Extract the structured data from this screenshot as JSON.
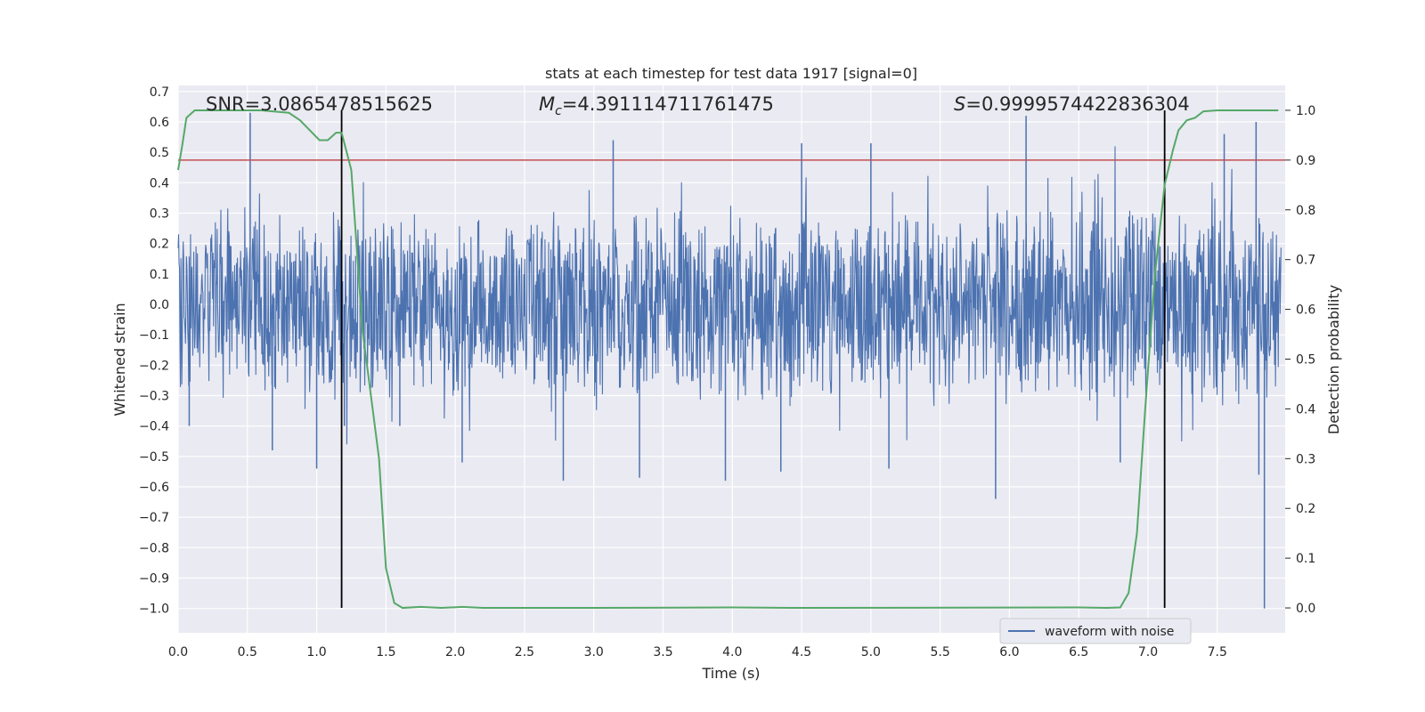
{
  "chart_data": {
    "type": "line",
    "title": "stats at each timestep for test data 1917 [signal=0]",
    "xlabel": "Time (s)",
    "ylabel": "Whitened strain",
    "y2label": "Detection probability",
    "xlim": [
      0.0,
      7.99
    ],
    "ylim": [
      -1.08,
      0.72
    ],
    "y2lim": [
      -0.05,
      1.05
    ],
    "grid": true,
    "legend": {
      "location": "lower-right",
      "entries": [
        "waveform with noise"
      ]
    },
    "x_ticks": [
      "0.0",
      "0.5",
      "1.0",
      "1.5",
      "2.0",
      "2.5",
      "3.0",
      "3.5",
      "4.0",
      "4.5",
      "5.0",
      "5.5",
      "6.0",
      "6.5",
      "7.0",
      "7.5"
    ],
    "y_ticks": [
      "0.7",
      "0.6",
      "0.5",
      "0.4",
      "0.3",
      "0.2",
      "0.1",
      "0.0",
      "−0.1",
      "−0.2",
      "−0.3",
      "−0.4",
      "−0.5",
      "−0.6",
      "−0.7",
      "−0.8",
      "−0.9",
      "−1.0"
    ],
    "y2_ticks": [
      "1.0",
      "0.9",
      "0.8",
      "0.7",
      "0.6",
      "0.5",
      "0.4",
      "0.3",
      "0.2",
      "0.1",
      "0.0"
    ],
    "annotations": {
      "snr": {
        "label": "SNR",
        "value": "=3.0865478515625"
      },
      "mc": {
        "symbol": "M",
        "subscript": "c",
        "value": "=4.391114711761475"
      },
      "s": {
        "symbol": "S",
        "value": "=0.9999574422836304"
      }
    },
    "threshold_line": {
      "y2": 0.9,
      "color": "#c44e52"
    },
    "vertical_lines": [
      1.18,
      7.12
    ],
    "waveform": {
      "name": "waveform with noise",
      "color": "#4c72b0",
      "samples": 2400,
      "typical_band": [
        -0.3,
        0.3
      ],
      "spikes": [
        {
          "x": 0.52,
          "y": 0.63
        },
        {
          "x": 0.08,
          "y": -0.4
        },
        {
          "x": 0.68,
          "y": -0.48
        },
        {
          "x": 1.0,
          "y": -0.54
        },
        {
          "x": 1.2,
          "y": -0.4
        },
        {
          "x": 1.6,
          "y": -0.4
        },
        {
          "x": 2.05,
          "y": -0.52
        },
        {
          "x": 2.78,
          "y": -0.58
        },
        {
          "x": 3.14,
          "y": 0.54
        },
        {
          "x": 3.33,
          "y": -0.57
        },
        {
          "x": 3.95,
          "y": -0.58
        },
        {
          "x": 4.35,
          "y": -0.55
        },
        {
          "x": 4.5,
          "y": 0.53
        },
        {
          "x": 5.0,
          "y": 0.53
        },
        {
          "x": 5.13,
          "y": -0.54
        },
        {
          "x": 5.9,
          "y": -0.64
        },
        {
          "x": 6.12,
          "y": 0.62
        },
        {
          "x": 6.8,
          "y": -0.52
        },
        {
          "x": 7.55,
          "y": 0.56
        },
        {
          "x": 7.78,
          "y": 0.6
        },
        {
          "x": 7.8,
          "y": -0.56
        },
        {
          "x": 7.84,
          "y": -1.0
        }
      ]
    },
    "probability": {
      "color": "#55a868",
      "points": [
        [
          0.0,
          0.88
        ],
        [
          0.03,
          0.93
        ],
        [
          0.06,
          0.985
        ],
        [
          0.12,
          1.0
        ],
        [
          0.3,
          1.0
        ],
        [
          0.6,
          1.0
        ],
        [
          0.8,
          0.995
        ],
        [
          0.88,
          0.98
        ],
        [
          0.95,
          0.96
        ],
        [
          1.02,
          0.94
        ],
        [
          1.08,
          0.94
        ],
        [
          1.14,
          0.955
        ],
        [
          1.18,
          0.955
        ],
        [
          1.25,
          0.88
        ],
        [
          1.33,
          0.56
        ],
        [
          1.45,
          0.3
        ],
        [
          1.5,
          0.08
        ],
        [
          1.56,
          0.01
        ],
        [
          1.62,
          0.0
        ],
        [
          1.75,
          0.002
        ],
        [
          1.9,
          0.0
        ],
        [
          2.05,
          0.002
        ],
        [
          2.2,
          0.0
        ],
        [
          3.0,
          0.0
        ],
        [
          4.0,
          0.001
        ],
        [
          4.5,
          0.0
        ],
        [
          6.5,
          0.001
        ],
        [
          6.7,
          0.0
        ],
        [
          6.8,
          0.001
        ],
        [
          6.86,
          0.03
        ],
        [
          6.92,
          0.15
        ],
        [
          6.98,
          0.4
        ],
        [
          7.05,
          0.67
        ],
        [
          7.12,
          0.85
        ],
        [
          7.18,
          0.92
        ],
        [
          7.22,
          0.96
        ],
        [
          7.28,
          0.98
        ],
        [
          7.34,
          0.985
        ],
        [
          7.4,
          0.998
        ],
        [
          7.5,
          1.0
        ],
        [
          7.94,
          1.0
        ]
      ]
    }
  }
}
